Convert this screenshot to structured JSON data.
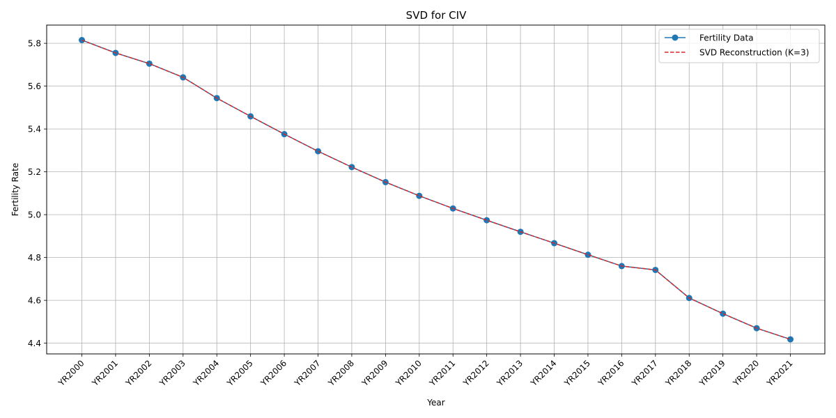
{
  "chart_data": {
    "type": "line",
    "title": "SVD for CIV",
    "xlabel": "Year",
    "ylabel": "Fertility Rate",
    "categories": [
      "YR2000",
      "YR2001",
      "YR2002",
      "YR2003",
      "YR2004",
      "YR2005",
      "YR2006",
      "YR2007",
      "YR2008",
      "YR2009",
      "YR2010",
      "YR2011",
      "YR2012",
      "YR2013",
      "YR2014",
      "YR2015",
      "YR2016",
      "YR2017",
      "YR2018",
      "YR2019",
      "YR2020",
      "YR2021"
    ],
    "yticks": [
      "4.4",
      "4.6",
      "4.8",
      "5.0",
      "5.2",
      "5.4",
      "5.6",
      "5.8"
    ],
    "ylim": [
      4.35,
      5.885
    ],
    "grid": true,
    "legend_position": "top-right",
    "series": [
      {
        "name": "Fertility Data",
        "style": "solid-with-markers",
        "color": "#1f77b4",
        "values": [
          5.815,
          5.755,
          5.705,
          5.641,
          5.544,
          5.459,
          5.376,
          5.296,
          5.222,
          5.152,
          5.088,
          5.029,
          4.974,
          4.92,
          4.867,
          4.813,
          4.76,
          4.742,
          4.611,
          4.538,
          4.47,
          4.418
        ]
      },
      {
        "name": "SVD Reconstruction (K=3)",
        "style": "dashed",
        "color": "#d62728",
        "values": [
          5.815,
          5.755,
          5.705,
          5.641,
          5.544,
          5.459,
          5.376,
          5.296,
          5.222,
          5.152,
          5.088,
          5.029,
          4.974,
          4.92,
          4.867,
          4.813,
          4.76,
          4.742,
          4.611,
          4.538,
          4.47,
          4.418
        ]
      }
    ]
  }
}
